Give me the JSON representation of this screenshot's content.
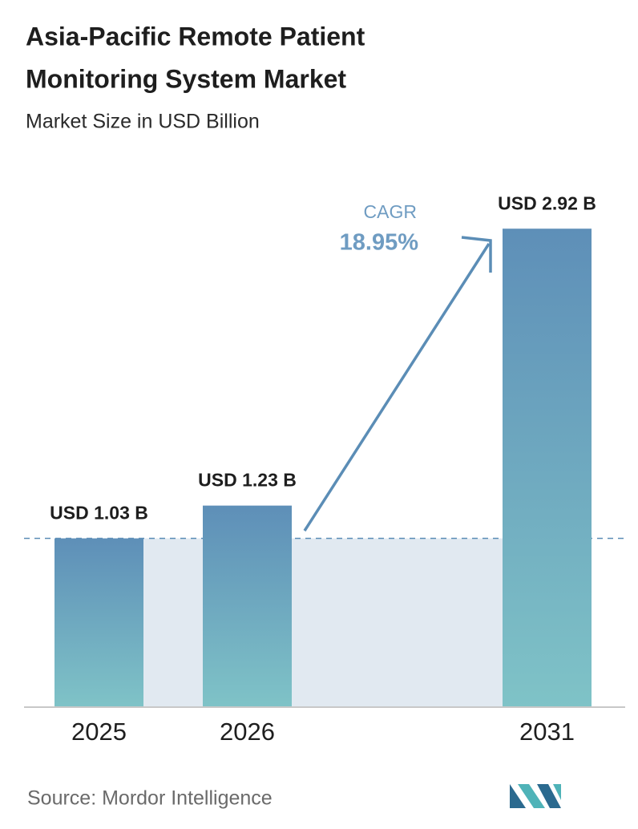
{
  "chart_data": {
    "type": "bar",
    "title": "Asia-Pacific Remote Patient Monitoring System Market",
    "subtitle": "Market Size in USD Billion",
    "categories": [
      "2025",
      "2026",
      "2031"
    ],
    "values": [
      1.03,
      1.23,
      2.92
    ],
    "value_labels": [
      "USD 1.03 B",
      "USD 1.23 B",
      "USD 2.92 B"
    ],
    "colors": [
      "#5e8fb8",
      "#7fc3c7"
    ],
    "ylim": [
      0,
      3.2
    ],
    "annotations": [
      "CAGR",
      "18.95%"
    ],
    "source": "Source: Mordor Intelligence"
  }
}
